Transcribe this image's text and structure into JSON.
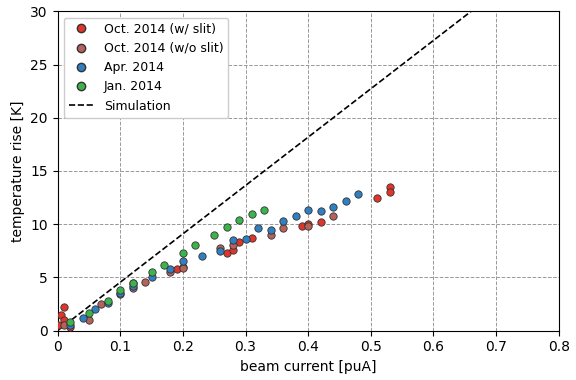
{
  "chart_data": {
    "type": "scatter",
    "x_label": "beam current [puA]",
    "y_label": "temperature rise [K]",
    "xlim": [
      0,
      0.8
    ],
    "xticks": [
      0,
      0.1,
      0.2,
      0.3,
      0.4,
      0.5,
      0.6,
      0.7,
      0.8
    ],
    "ylim": [
      0,
      30
    ],
    "yticks": [
      0,
      5,
      10,
      15,
      20,
      25,
      30
    ],
    "grid": true,
    "legend": "upper left",
    "series": [
      {
        "name": "Oct. 2014 (w/ slit)",
        "color": "#e0352b",
        "marker": "o",
        "type": "scatter",
        "x": [
          0,
          0.005,
          0.01,
          0.01,
          0.02,
          0.12,
          0.19,
          0.2,
          0.27,
          0.28,
          0.29,
          0.31,
          0.39,
          0.4,
          0.42,
          0.51,
          0.53,
          0.53
        ],
        "values": [
          0.5,
          1.5,
          2.2,
          1.0,
          0.3,
          4.5,
          5.8,
          6.0,
          7.3,
          7.6,
          8.3,
          8.7,
          9.8,
          10.0,
          10.2,
          12.5,
          13.5,
          13.0
        ]
      },
      {
        "name": "Oct. 2014 (w/o slit)",
        "color": "#b5615c",
        "marker": "o",
        "type": "scatter",
        "x": [
          0.01,
          0.05,
          0.07,
          0.1,
          0.12,
          0.14,
          0.18,
          0.2,
          0.26,
          0.28,
          0.34,
          0.36,
          0.4,
          0.44
        ],
        "values": [
          0.5,
          1.0,
          2.5,
          3.4,
          4.0,
          4.6,
          5.5,
          5.9,
          7.8,
          8.0,
          9.0,
          9.6,
          9.8,
          10.8
        ]
      },
      {
        "name": "Apr. 2014",
        "color": "#2f7fc1",
        "marker": "o",
        "type": "scatter",
        "x": [
          0.02,
          0.04,
          0.06,
          0.08,
          0.1,
          0.12,
          0.15,
          0.18,
          0.2,
          0.23,
          0.26,
          0.28,
          0.3,
          0.32,
          0.34,
          0.36,
          0.38,
          0.4,
          0.42,
          0.44,
          0.46,
          0.48
        ],
        "values": [
          0.5,
          1.2,
          2.0,
          2.6,
          3.5,
          4.2,
          5.0,
          5.8,
          6.5,
          7.0,
          7.5,
          8.5,
          8.6,
          9.6,
          9.5,
          10.3,
          10.8,
          11.3,
          11.2,
          11.6,
          12.2,
          12.8
        ]
      },
      {
        "name": "Jan. 2014",
        "color": "#3cb44b",
        "marker": "o",
        "type": "scatter",
        "x": [
          0.02,
          0.05,
          0.08,
          0.1,
          0.12,
          0.15,
          0.17,
          0.2,
          0.22,
          0.25,
          0.27,
          0.29,
          0.31,
          0.33
        ],
        "values": [
          0.8,
          1.7,
          2.8,
          3.8,
          4.5,
          5.5,
          6.2,
          7.3,
          8.0,
          9.0,
          9.7,
          10.4,
          11.0,
          11.3
        ]
      },
      {
        "name": "Simulation",
        "color": "#000000",
        "type": "line",
        "line_style": "dashed",
        "x": [
          0,
          0.66
        ],
        "values": [
          0,
          30
        ]
      }
    ]
  }
}
